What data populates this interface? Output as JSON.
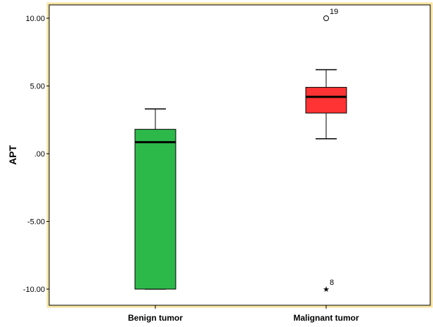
{
  "chart_data": {
    "type": "boxplot",
    "ylabel": "APT",
    "ylim": [
      -10.8,
      11.0
    ],
    "yticks": [
      {
        "value": 10,
        "label": "10.00"
      },
      {
        "value": 5,
        "label": "5.00"
      },
      {
        "value": 0,
        "label": ".00"
      },
      {
        "value": -5,
        "label": "-5.00"
      },
      {
        "value": -10,
        "label": "-10.00"
      }
    ],
    "categories": [
      "Benign tumor",
      "Malignant tumor"
    ],
    "groups": [
      {
        "category": "Benign tumor",
        "color": "#2db84a",
        "whisker_low": -10.0,
        "q1": -10.0,
        "median": 0.85,
        "q3": 1.8,
        "whisker_high": 3.3,
        "outliers": []
      },
      {
        "category": "Malignant tumor",
        "color": "#ff3333",
        "whisker_low": 1.1,
        "q1": 3.0,
        "median": 4.2,
        "q3": 4.9,
        "whisker_high": 6.2,
        "outliers": [
          {
            "value": 10.0,
            "label": "19",
            "marker": "circle"
          },
          {
            "value": -10.0,
            "label": "8",
            "marker": "star"
          }
        ]
      }
    ],
    "frame_color": "#f5e3a0"
  }
}
